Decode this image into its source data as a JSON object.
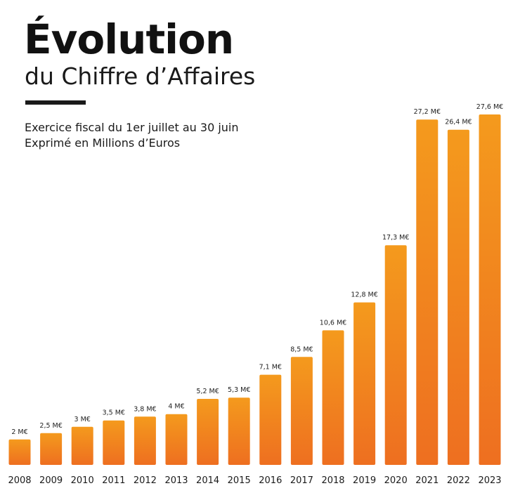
{
  "header": {
    "title": "Évolution",
    "subtitle": "du Chiffre d’Affaires",
    "note_line1": "Exercice fiscal du 1er juillet au 30 juin",
    "note_line2": "Exprimé en Millions d’Euros"
  },
  "colors": {
    "bar_top": "#f49a1d",
    "bar_bottom": "#ee6f20",
    "text": "#1a1a1a"
  },
  "chart_data": {
    "type": "bar",
    "title": "Évolution",
    "subtitle": "du Chiffre d’Affaires",
    "xlabel": "",
    "ylabel": "",
    "unit": "M€",
    "categories": [
      "2008",
      "2009",
      "2010",
      "2011",
      "2012",
      "2013",
      "2014",
      "2015",
      "2016",
      "2017",
      "2018",
      "2019",
      "2020",
      "2021",
      "2022",
      "2023"
    ],
    "values": [
      2,
      2.5,
      3,
      3.5,
      3.8,
      4,
      5.2,
      5.3,
      7.1,
      8.5,
      10.6,
      12.8,
      17.3,
      27.2,
      26.4,
      27.6
    ],
    "data_labels": [
      "2 M€",
      "2,5 M€",
      "3 M€",
      "3,5 M€",
      "3,8 M€",
      "4 M€",
      "5,2 M€",
      "5,3 M€",
      "7,1 M€",
      "8,5 M€",
      "10,6 M€",
      "12,8 M€",
      "17,3 M€",
      "27,2 M€",
      "26,4 M€",
      "27,6 M€"
    ],
    "ylim": [
      0,
      27.6
    ],
    "grid": false,
    "legend": "none"
  }
}
